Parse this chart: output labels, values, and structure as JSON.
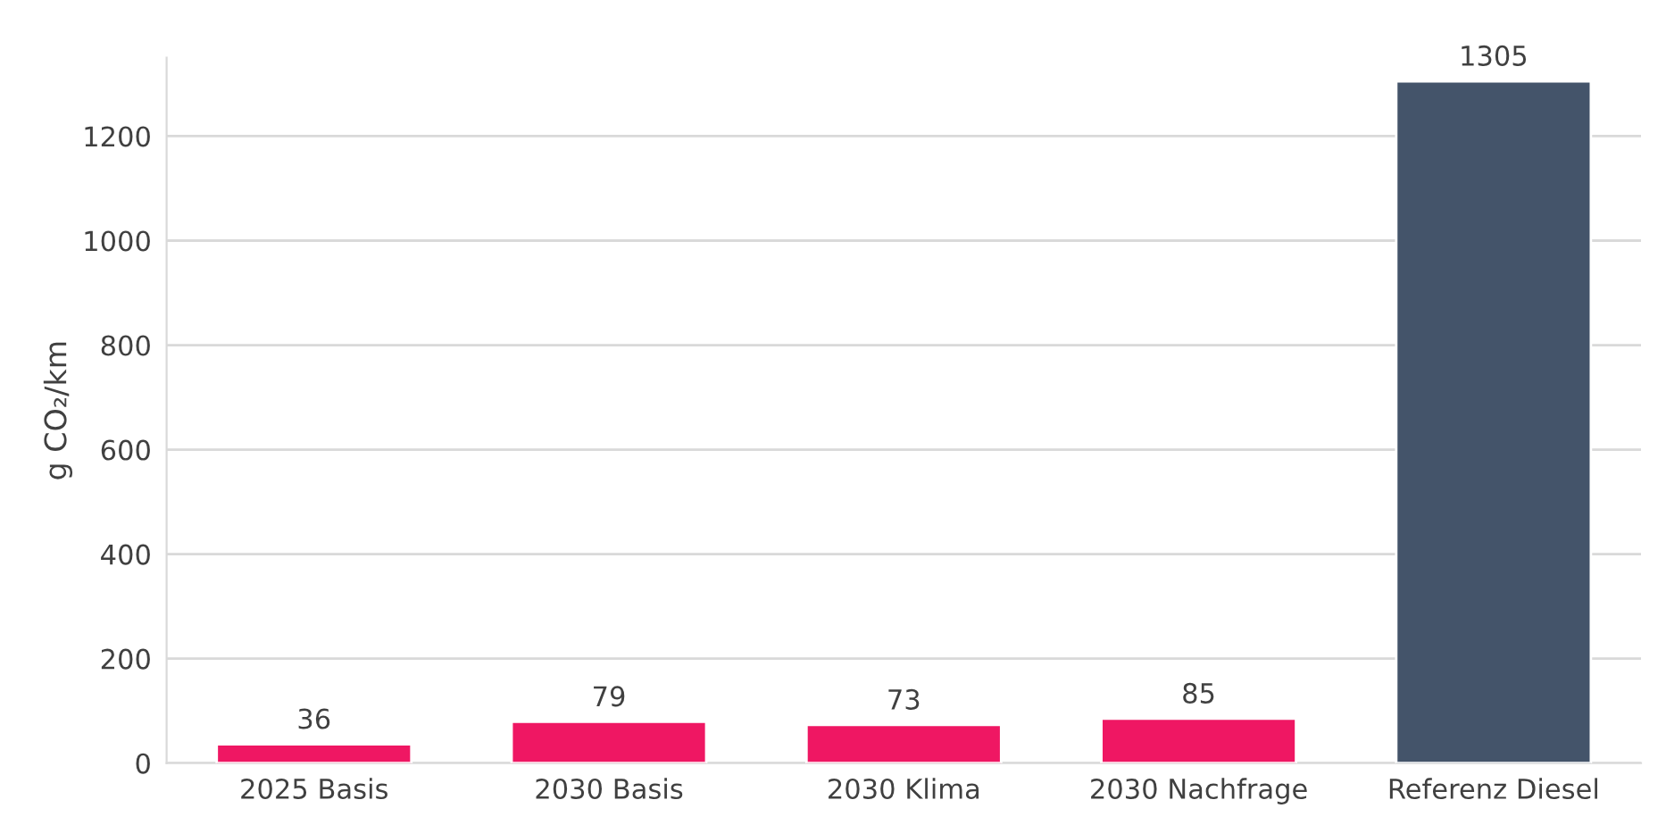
{
  "chart_data": {
    "type": "bar",
    "ylabel": "g CO₂/km",
    "categories": [
      "2025 Basis",
      "2030 Basis",
      "2030 Klima",
      "2030 Nachfrage",
      "Referenz Diesel"
    ],
    "values": [
      36,
      79,
      73,
      85,
      1305
    ],
    "colors": [
      "#ef1763",
      "#ef1763",
      "#ef1763",
      "#ef1763",
      "#44546a"
    ],
    "ylim": [
      0,
      1350
    ],
    "yticks": [
      0,
      200,
      400,
      600,
      800,
      1000,
      1200
    ],
    "grid": "y",
    "data_labels": true
  }
}
